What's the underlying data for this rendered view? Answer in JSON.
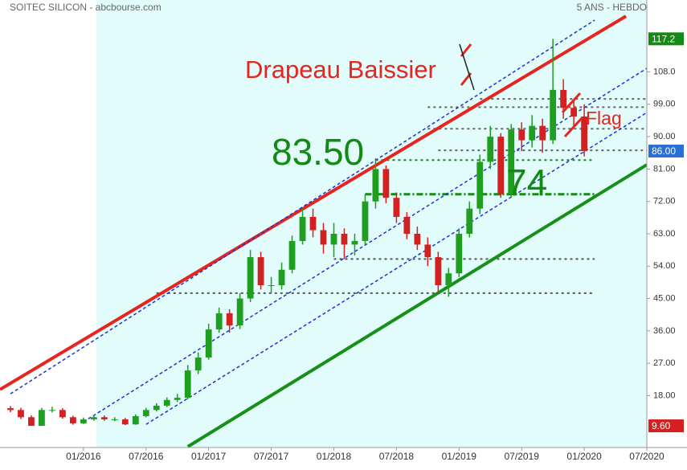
{
  "header": {
    "left": "SOITEC SILICON - abcbourse.com",
    "right": "5 ANS - HEBDO"
  },
  "chart_data": {
    "type": "candlestick",
    "x": [
      "06/2015",
      "07/2015",
      "08/2015",
      "09/2015",
      "10/2015",
      "11/2015",
      "12/2015",
      "01/2016",
      "02/2016",
      "03/2016",
      "04/2016",
      "05/2016",
      "06/2016",
      "07/2016",
      "08/2016",
      "09/2016",
      "10/2016",
      "11/2016",
      "12/2016",
      "01/2017",
      "02/2017",
      "03/2017",
      "04/2017",
      "05/2017",
      "06/2017",
      "07/2017",
      "08/2017",
      "09/2017",
      "10/2017",
      "11/2017",
      "12/2017",
      "01/2018",
      "02/2018",
      "03/2018",
      "04/2018",
      "05/2018",
      "06/2018",
      "07/2018",
      "08/2018",
      "09/2018",
      "10/2018",
      "11/2018",
      "12/2018",
      "01/2019",
      "02/2019",
      "03/2019",
      "04/2019",
      "05/2019",
      "06/2019",
      "07/2019",
      "08/2019",
      "09/2019",
      "10/2019",
      "11/2019",
      "12/2019",
      "01/2020"
    ],
    "open": [
      14.5,
      14,
      12,
      9.6,
      14,
      14,
      12,
      10.3,
      11.4,
      12,
      11.4,
      11.4,
      10,
      12.3,
      14,
      15.2,
      16.8,
      17.4,
      25,
      28.6,
      36.4,
      40.9,
      37.5,
      45,
      56.5,
      48.7,
      48.7,
      53,
      61,
      67.7,
      64,
      60,
      63,
      60,
      61,
      72,
      81,
      73,
      67.7,
      63,
      60,
      56.5,
      48.7,
      52,
      63,
      70,
      83,
      90,
      74,
      92,
      89,
      93,
      89,
      103,
      98,
      95.6
    ],
    "high": [
      15.1,
      14.6,
      12.5,
      14.6,
      14.9,
      14.5,
      12.4,
      11.9,
      12.6,
      12.5,
      12,
      11.8,
      12.8,
      14.6,
      15.9,
      17.5,
      18.5,
      26.5,
      30,
      38,
      42.5,
      42,
      46.5,
      58.5,
      58,
      51,
      55,
      62.5,
      70,
      70,
      66,
      66,
      64.5,
      63,
      74,
      84,
      82,
      74.5,
      69,
      65,
      62,
      58,
      53.5,
      64.5,
      72,
      85,
      93,
      91,
      93.5,
      94,
      96,
      95,
      117.2,
      106,
      100,
      99
    ],
    "low": [
      13.4,
      11.5,
      9.6,
      9.8,
      13.3,
      11.6,
      9.9,
      10.1,
      11,
      11,
      10.9,
      9.8,
      9.9,
      12,
      13.6,
      14.8,
      16.2,
      17,
      24,
      28,
      35.5,
      35.5,
      36.5,
      44,
      47.5,
      46.5,
      47.5,
      52,
      60,
      62,
      57.5,
      56.5,
      56,
      57,
      60,
      70,
      71.5,
      66,
      61.5,
      58.5,
      54,
      46.5,
      45.5,
      51,
      62,
      68.5,
      81,
      73,
      73,
      86,
      87,
      85.5,
      88,
      95,
      93,
      84.5
    ],
    "close": [
      14,
      12,
      9.6,
      14,
      14,
      12,
      10.3,
      11.4,
      12,
      11.4,
      11.4,
      10,
      12.3,
      14,
      15.2,
      16.8,
      17.4,
      25,
      28.6,
      36.4,
      40.9,
      37.5,
      45,
      56.5,
      48.7,
      48.7,
      53,
      61,
      67.7,
      64,
      60,
      63,
      60,
      61,
      72,
      81,
      73,
      67.7,
      63,
      60,
      56.5,
      48.7,
      52,
      63,
      70,
      83,
      90,
      74,
      92,
      89,
      93,
      89,
      103,
      98,
      95.6,
      86
    ],
    "up_color": "#1f9e1f",
    "down_color": "#d42020",
    "xlim": [
      "05/2015",
      "07/2020"
    ],
    "xticks": [
      "01/2016",
      "07/2016",
      "01/2017",
      "07/2017",
      "01/2018",
      "07/2018",
      "01/2019",
      "07/2019",
      "01/2020",
      "07/2020"
    ],
    "ylim": [
      0,
      128
    ],
    "yticks": [
      {
        "value": 18,
        "label": "18.00"
      },
      {
        "value": 27,
        "label": "27.00"
      },
      {
        "value": 36,
        "label": "36.00"
      },
      {
        "value": 45,
        "label": "45.00"
      },
      {
        "value": 54,
        "label": "54.00"
      },
      {
        "value": 63,
        "label": "63.00"
      },
      {
        "value": 72,
        "label": "72.00"
      },
      {
        "value": 81,
        "label": "81.00"
      },
      {
        "value": 90,
        "label": "90.00"
      },
      {
        "value": 99,
        "label": "99.00"
      },
      {
        "value": 108,
        "label": "108.0"
      }
    ],
    "price_markers": [
      {
        "value": 117.2,
        "label": "117.2",
        "color": "#138a13"
      },
      {
        "value": 86,
        "label": "86.00",
        "color": "#2a6fd6"
      },
      {
        "value": 9.6,
        "label": "9.60",
        "color": "#d42020"
      }
    ],
    "trendlines": [
      {
        "color": "#e8241f",
        "style": "solid",
        "x": [
          "05/2015",
          "05/2020"
        ],
        "values": [
          19.7,
          123.5
        ]
      },
      {
        "color": "#17901a",
        "style": "solid",
        "x": [
          "11/2016",
          "07/2020"
        ],
        "values": [
          3.8,
          82.2
        ]
      },
      {
        "color": "#1a35d8",
        "style": "dashed",
        "x": [
          "06/2015",
          "02/2020"
        ],
        "values": [
          18.5,
          122.4
        ]
      },
      {
        "color": "#1a35d8",
        "style": "dashed",
        "x": [
          "01/2016",
          "07/2020"
        ],
        "values": [
          10.7,
          109
        ]
      },
      {
        "color": "#1a35d8",
        "style": "dashed",
        "x": [
          "07/2016",
          "07/2020"
        ],
        "values": [
          10,
          96.7
        ]
      }
    ],
    "levels": [
      {
        "value": 100.5,
        "x": [
          "03/2019",
          "07/2020"
        ],
        "color": "#666666",
        "style": "dotted"
      },
      {
        "value": 98.2,
        "x": [
          "10/2018",
          "07/2020"
        ],
        "color": "#666666",
        "style": "dotted"
      },
      {
        "value": 92.2,
        "x": [
          "10/2018",
          "07/2020"
        ],
        "color": "#666666",
        "style": "dotted"
      },
      {
        "value": 86.2,
        "x": [
          "11/2018",
          "07/2020"
        ],
        "color": "#666666",
        "style": "dotted"
      },
      {
        "value": 83.5,
        "x": [
          "05/2018",
          "02/2020"
        ],
        "color": "#138a13",
        "style": "dotted"
      },
      {
        "value": 74,
        "x": [
          "04/2018",
          "02/2020"
        ],
        "color": "#138a13",
        "style": "dashdot"
      },
      {
        "value": 56,
        "x": [
          "01/2018",
          "02/2020"
        ],
        "color": "#555555",
        "style": "dotted"
      },
      {
        "value": 46.5,
        "x": [
          "08/2016",
          "02/2020"
        ],
        "color": "#555555",
        "style": "dotted"
      }
    ],
    "annotations": [
      {
        "text": "Drapeau Baissier",
        "color": "#e8241f"
      },
      {
        "text": "83.50",
        "color": "#138a13"
      },
      {
        "text": "74",
        "color": "#138a13"
      },
      {
        "text": "Flag",
        "color": "#e8241f"
      }
    ]
  }
}
